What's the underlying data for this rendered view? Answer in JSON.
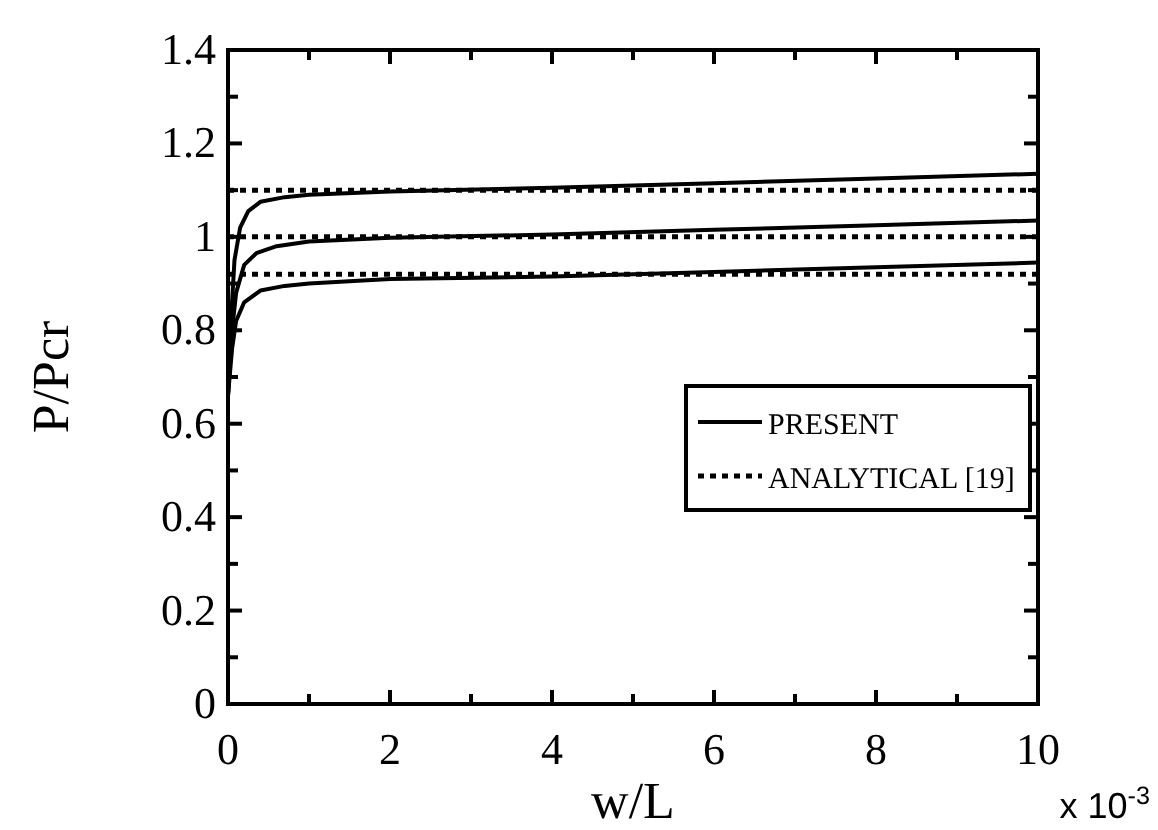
{
  "chart_data": {
    "type": "line",
    "xlabel": "w/L",
    "ylabel": "P/Pcr",
    "annotations": [
      "x 10$^{-3}$"
    ],
    "xlim": [
      0,
      10
    ],
    "ylim": [
      0,
      1.4
    ],
    "xticks": [
      0,
      {
        "value": 1,
        "label": null
      },
      2,
      {
        "value": 3,
        "label": null
      },
      4,
      {
        "value": 5,
        "label": null
      },
      6,
      {
        "value": 7,
        "label": null
      },
      8,
      {
        "value": 9,
        "label": null
      },
      10
    ],
    "yticks": [
      0,
      {
        "value": 0.1,
        "label": null
      },
      0.2,
      {
        "value": 0.3,
        "label": null
      },
      0.4,
      {
        "value": 0.5,
        "label": null
      },
      0.6,
      {
        "value": 0.7,
        "label": null
      },
      0.8,
      {
        "value": 0.9,
        "label": null
      },
      1,
      {
        "value": 1.1,
        "label": null
      },
      1.2,
      {
        "value": 1.3,
        "label": null
      },
      1.4
    ],
    "grid": false,
    "legend": "bottom right",
    "marker": "none",
    "series": [
      {
        "name": "PRESENT",
        "color": "#000000",
        "line_style": "solid",
        "x": [
          0,
          0.03,
          0.08,
          0.15,
          0.25,
          0.4,
          0.7,
          1,
          2,
          4,
          6,
          8,
          10
        ],
        "values": [
          0.66,
          0.8,
          0.95,
          1.02,
          1.055,
          1.075,
          1.085,
          1.09,
          1.097,
          1.105,
          1.115,
          1.125,
          1.135
        ]
      },
      {
        "color": "#000000",
        "line_style": "solid",
        "x": [
          0,
          0.05,
          0.1,
          0.2,
          0.35,
          0.6,
          1,
          2,
          4,
          6,
          8,
          10
        ],
        "values": [
          0.66,
          0.8,
          0.88,
          0.94,
          0.965,
          0.98,
          0.99,
          0.998,
          1.005,
          1.015,
          1.025,
          1.035
        ]
      },
      {
        "color": "#000000",
        "line_style": "solid",
        "x": [
          0,
          0.05,
          0.1,
          0.2,
          0.4,
          0.7,
          1,
          2,
          4,
          6,
          8,
          10
        ],
        "values": [
          0.66,
          0.76,
          0.82,
          0.86,
          0.885,
          0.895,
          0.9,
          0.91,
          0.915,
          0.925,
          0.935,
          0.945
        ]
      },
      {
        "name": "ANALYTICAL [19]",
        "color": "#000000",
        "line_style": "dotted",
        "x": [
          0,
          10
        ],
        "values": [
          1.1,
          1.1
        ]
      },
      {
        "color": "#000000",
        "line_style": "dotted",
        "x": [
          0,
          10
        ],
        "values": [
          1,
          1
        ]
      },
      {
        "color": "#000000",
        "line_style": "dotted",
        "x": [
          0,
          10
        ],
        "values": [
          0.92,
          0.92
        ]
      }
    ]
  }
}
